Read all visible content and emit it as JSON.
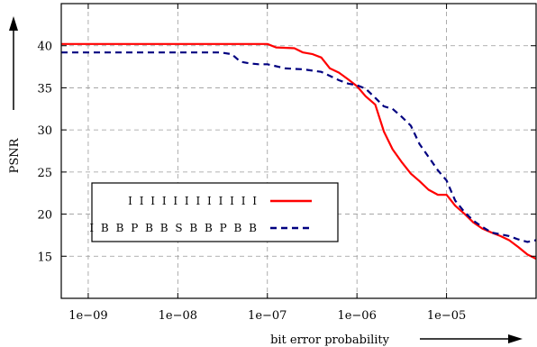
{
  "chart_data": {
    "type": "line",
    "xlabel": "bit error probability",
    "ylabel": "PSNR",
    "x_scale": "log",
    "xlim": [
      5e-10,
      0.0001
    ],
    "ylim": [
      10,
      45
    ],
    "grid": true,
    "legend_position": "left",
    "x_ticks": [
      {
        "value": 1e-09,
        "label": "1e−09"
      },
      {
        "value": 1e-08,
        "label": "1e−08"
      },
      {
        "value": 1e-07,
        "label": "1e−07"
      },
      {
        "value": 1e-06,
        "label": "1e−06"
      },
      {
        "value": 1e-05,
        "label": "1e−05"
      }
    ],
    "y_ticks": [
      15,
      20,
      25,
      30,
      35,
      40
    ],
    "series": [
      {
        "name": "I I I I I I I I I I I I",
        "color": "#ff0000",
        "dash": "solid",
        "points": [
          [
            5e-10,
            40.2
          ],
          [
            1e-09,
            40.2
          ],
          [
            3e-09,
            40.2
          ],
          [
            1e-08,
            40.2
          ],
          [
            3e-08,
            40.2
          ],
          [
            1e-07,
            40.2
          ],
          [
            1.25e-07,
            39.8
          ],
          [
            2e-07,
            39.7
          ],
          [
            2.5e-07,
            39.2
          ],
          [
            3.2e-07,
            39.0
          ],
          [
            4e-07,
            38.6
          ],
          [
            5e-07,
            37.3
          ],
          [
            6.3e-07,
            36.8
          ],
          [
            8e-07,
            36.0
          ],
          [
            1e-06,
            35.2
          ],
          [
            1.25e-06,
            34.0
          ],
          [
            1.6e-06,
            33.0
          ],
          [
            2e-06,
            29.8
          ],
          [
            2.5e-06,
            27.7
          ],
          [
            3.2e-06,
            26.1
          ],
          [
            4e-06,
            24.8
          ],
          [
            5e-06,
            23.9
          ],
          [
            6.3e-06,
            22.9
          ],
          [
            8e-06,
            22.3
          ],
          [
            1e-05,
            22.3
          ],
          [
            1.25e-05,
            21.0
          ],
          [
            1.6e-05,
            20.0
          ],
          [
            2e-05,
            19.0
          ],
          [
            2.5e-05,
            18.3
          ],
          [
            3.2e-05,
            17.8
          ],
          [
            4e-05,
            17.4
          ],
          [
            5e-05,
            16.9
          ],
          [
            6.3e-05,
            16.1
          ],
          [
            8e-05,
            15.2
          ],
          [
            0.0001,
            14.7
          ]
        ]
      },
      {
        "name": "I B B P B B S B B P B B",
        "color": "#000080",
        "dash": "dashed",
        "points": [
          [
            5e-10,
            39.2
          ],
          [
            1e-09,
            39.2
          ],
          [
            3e-09,
            39.2
          ],
          [
            1e-08,
            39.2
          ],
          [
            3e-08,
            39.2
          ],
          [
            4e-08,
            39.0
          ],
          [
            5e-08,
            38.1
          ],
          [
            6.3e-08,
            37.9
          ],
          [
            8e-08,
            37.8
          ],
          [
            1e-07,
            37.8
          ],
          [
            1.6e-07,
            37.3
          ],
          [
            2.5e-07,
            37.2
          ],
          [
            4e-07,
            36.9
          ],
          [
            5e-07,
            36.4
          ],
          [
            6.3e-07,
            35.9
          ],
          [
            8e-07,
            35.5
          ],
          [
            1e-06,
            35.3
          ],
          [
            1.25e-06,
            34.9
          ],
          [
            1.6e-06,
            33.8
          ],
          [
            2e-06,
            32.8
          ],
          [
            2.5e-06,
            32.5
          ],
          [
            3.2e-06,
            31.5
          ],
          [
            4e-06,
            30.5
          ],
          [
            5e-06,
            28.3
          ],
          [
            6.3e-06,
            26.8
          ],
          [
            8e-06,
            25.2
          ],
          [
            1e-05,
            24.0
          ],
          [
            1.25e-05,
            21.6
          ],
          [
            1.6e-05,
            20.2
          ],
          [
            2e-05,
            19.2
          ],
          [
            2.5e-05,
            18.5
          ],
          [
            3.2e-05,
            17.8
          ],
          [
            4e-05,
            17.6
          ],
          [
            5e-05,
            17.4
          ],
          [
            6.3e-05,
            17.0
          ],
          [
            8e-05,
            16.7
          ],
          [
            0.0001,
            16.9
          ]
        ]
      }
    ]
  }
}
